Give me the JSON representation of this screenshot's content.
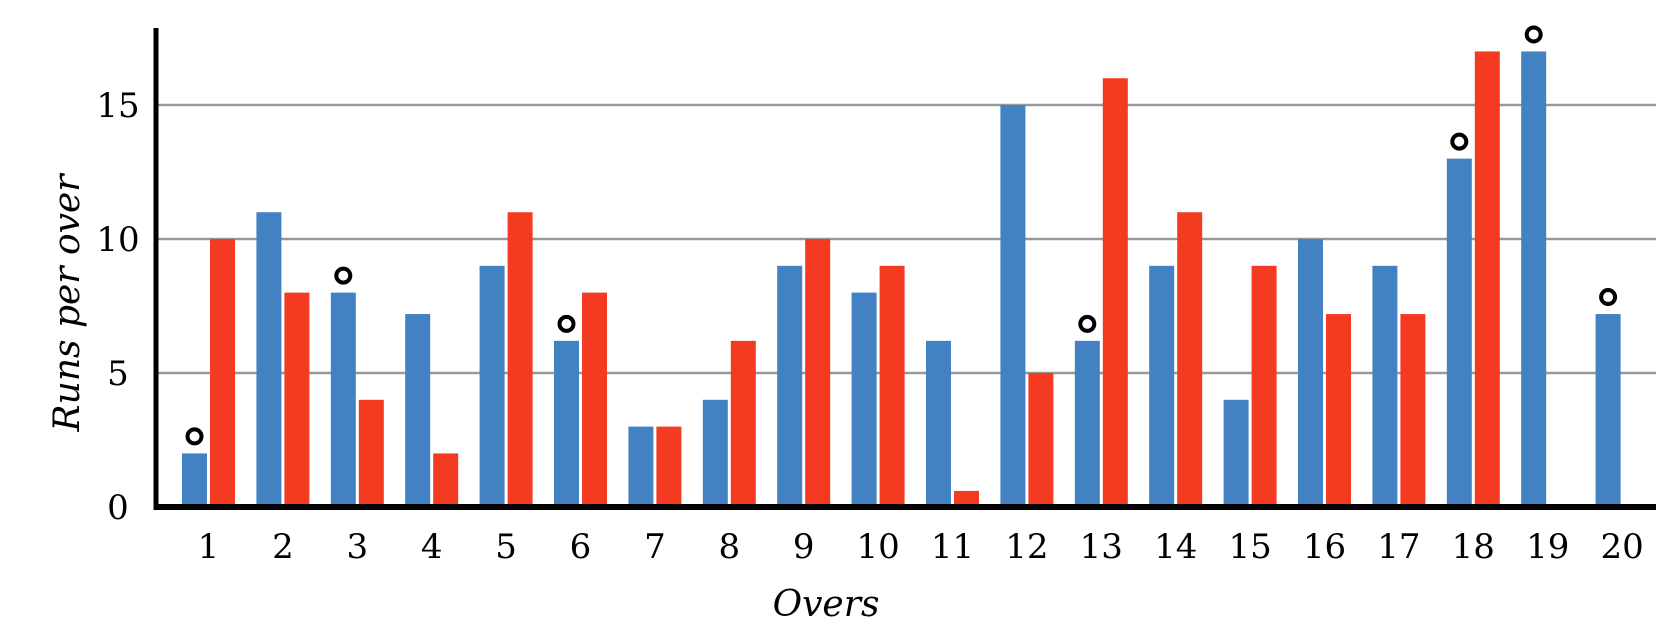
{
  "chart_data": {
    "type": "bar",
    "title": "",
    "xlabel": "Overs",
    "ylabel": "Runs per over",
    "ylim": [
      0,
      17.8
    ],
    "yticks": [
      0,
      5,
      10,
      15
    ],
    "grid": "horizontal",
    "categories": [
      "1",
      "2",
      "3",
      "4",
      "5",
      "6",
      "7",
      "8",
      "9",
      "10",
      "11",
      "12",
      "13",
      "14",
      "15",
      "16",
      "17",
      "18",
      "19",
      "20"
    ],
    "series": [
      {
        "color": "#4282c2",
        "values": [
          2,
          11,
          8,
          7.2,
          9,
          6.2,
          3,
          4,
          9,
          8,
          6.2,
          15,
          6.2,
          9,
          4,
          10,
          9,
          13,
          17,
          7.2
        ],
        "wicket_markers": [
          1,
          3,
          6,
          13,
          18,
          19,
          20
        ]
      },
      {
        "color": "#f53a22",
        "values": [
          10,
          8,
          4,
          2,
          11,
          8,
          3,
          6.2,
          10,
          9,
          0.6,
          5,
          16,
          11,
          9,
          7.2,
          7.2,
          17,
          null,
          null
        ],
        "wicket_markers": []
      }
    ],
    "grid_color": "#999999",
    "axis_color": "#000000"
  }
}
